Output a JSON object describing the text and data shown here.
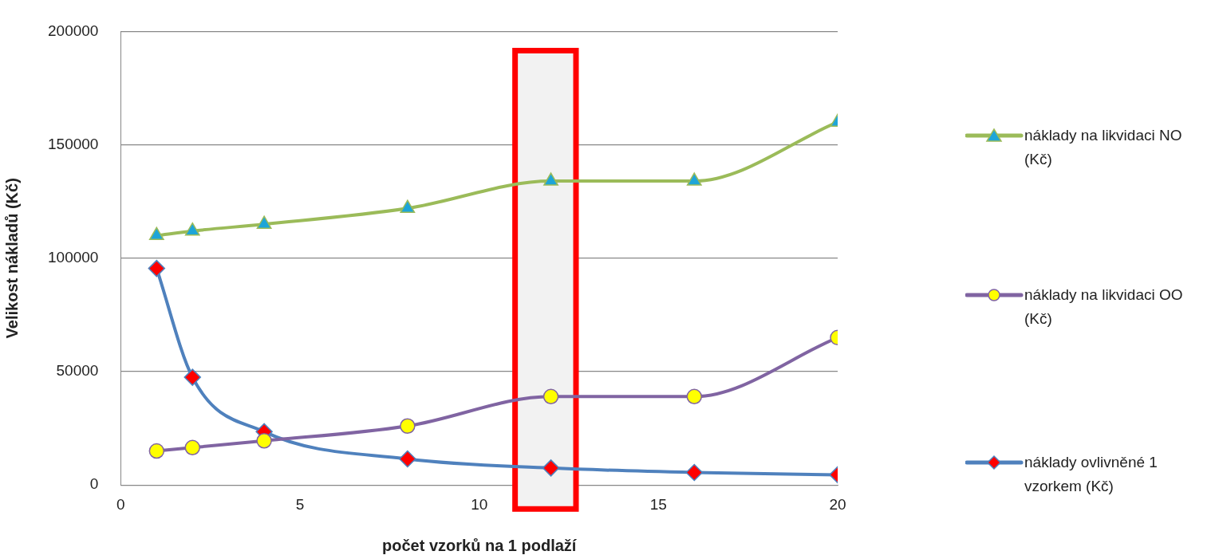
{
  "chart_data": {
    "type": "line",
    "xlabel": "počet vzorků na 1 podlaží",
    "ylabel": "Velikost nákladů (Kč)",
    "x": [
      1,
      2,
      4,
      8,
      12,
      16,
      20
    ],
    "series": [
      {
        "name": "náklady na likvidaci NO (Kč)",
        "color": "#9bbb59",
        "marker": "triangle",
        "colors": [
          "#1ea5d8",
          "#1ea5d8",
          "#1ea5d8",
          "#1ea5d8",
          "#1ea5d8",
          "#1ea5d8",
          "#1ea5d8"
        ],
        "values": [
          110000,
          112000,
          115000,
          122000,
          134000,
          134000,
          160000
        ]
      },
      {
        "name": "náklady na likvidaci OO (Kč)",
        "color": "#8064a2",
        "marker": "circle",
        "colors": [
          "#ffff00",
          "#ffff00",
          "#ffff00",
          "#ffff00",
          "#ffff00",
          "#ffff00",
          "#ffff00"
        ],
        "values": [
          15000,
          16500,
          19500,
          26000,
          39000,
          39000,
          65000
        ]
      },
      {
        "name": "náklady ovlivněné 1 vzorkem (Kč)",
        "color": "#4f81bd",
        "marker": "diamond",
        "colors": [
          "#ff0000",
          "#ff0000",
          "#ff0000",
          "#ff0000",
          "#ff0000",
          "#ff0000",
          "#ff0000"
        ],
        "values": [
          95500,
          47500,
          23500,
          11500,
          7500,
          5500,
          4500
        ]
      }
    ],
    "xlim": [
      0,
      20
    ],
    "xticks": [
      0,
      5,
      10,
      15,
      20
    ],
    "ylim": [
      0,
      200000
    ],
    "yticks": [
      0,
      50000,
      100000,
      150000,
      200000
    ],
    "grid": "y",
    "legend": "right",
    "bands": [
      {
        "axis": "x",
        "from": 11,
        "to": 12.7,
        "color": "#f2f2f2"
      }
    ]
  }
}
